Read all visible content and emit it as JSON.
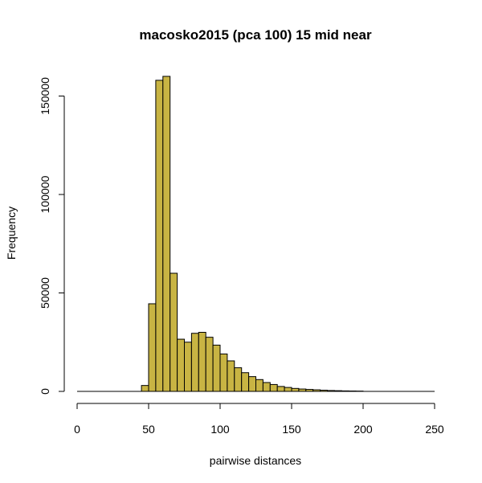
{
  "chart_data": {
    "type": "bar",
    "title": "macosko2015 (pca 100) 15 mid near",
    "xlabel": "pairwise distances",
    "ylabel": "Frequency",
    "bar_color": "#C8B443",
    "xlim": [
      0,
      250
    ],
    "ylim": [
      0,
      160000
    ],
    "x_ticks": [
      0,
      50,
      100,
      150,
      200,
      250
    ],
    "y_ticks": [
      0,
      50000,
      100000,
      150000
    ],
    "bin_width": 5,
    "bins_start": [
      45,
      50,
      55,
      60,
      65,
      70,
      75,
      80,
      85,
      90,
      95,
      100,
      105,
      110,
      115,
      120,
      125,
      130,
      135,
      140,
      145,
      150,
      155,
      160,
      165,
      170,
      175,
      180,
      185,
      190,
      195
    ],
    "values": [
      3000,
      44500,
      158000,
      160000,
      60000,
      26500,
      25000,
      29500,
      30000,
      27500,
      23500,
      19000,
      15500,
      12000,
      9500,
      7500,
      6000,
      4500,
      3500,
      2500,
      2000,
      1500,
      1200,
      1000,
      800,
      600,
      450,
      350,
      250,
      200,
      150
    ]
  }
}
